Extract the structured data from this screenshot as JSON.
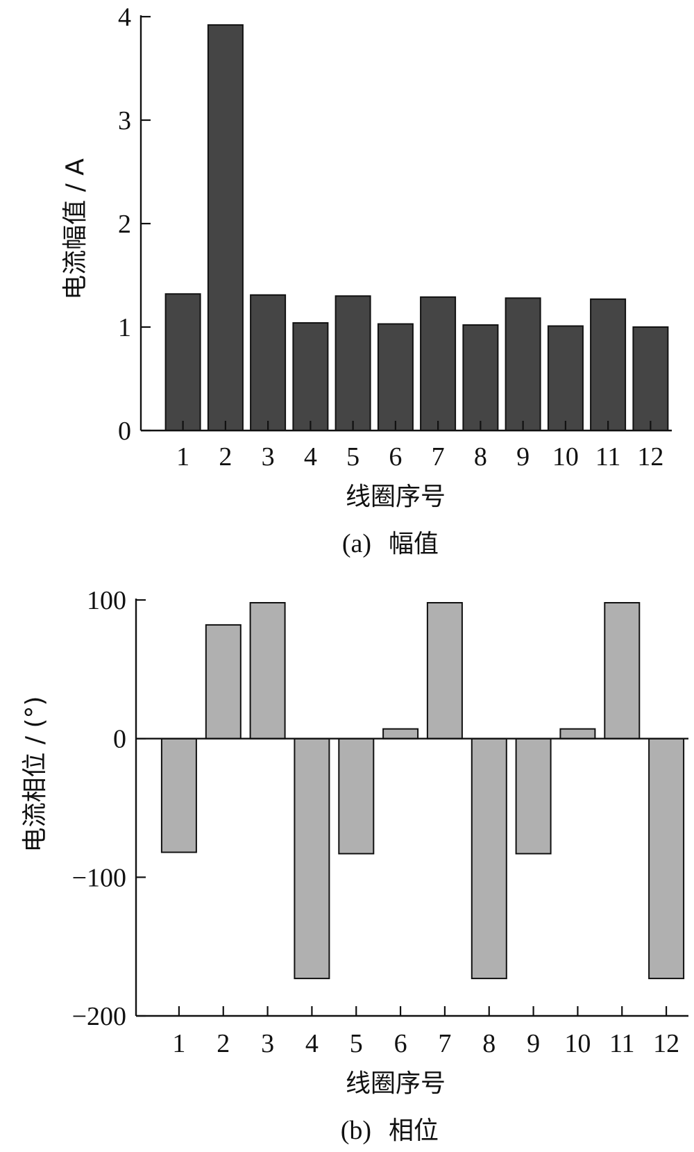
{
  "chart_data": [
    {
      "type": "bar",
      "panel_label": "(a)",
      "caption": "幅值",
      "categories": [
        "1",
        "2",
        "3",
        "4",
        "5",
        "6",
        "7",
        "8",
        "9",
        "10",
        "11",
        "12"
      ],
      "values": [
        1.32,
        3.92,
        1.31,
        1.04,
        1.3,
        1.03,
        1.29,
        1.02,
        1.28,
        1.01,
        1.27,
        1.0
      ],
      "xlabel": "线圈序号",
      "ylabel": "电流幅值 / A",
      "ylim": [
        0,
        4
      ],
      "yticks": [
        0,
        1,
        2,
        3,
        4
      ],
      "bar_color": "#454545",
      "grid": false
    },
    {
      "type": "bar",
      "panel_label": "(b)",
      "caption": "相位",
      "categories": [
        "1",
        "2",
        "3",
        "4",
        "5",
        "6",
        "7",
        "8",
        "9",
        "10",
        "11",
        "12"
      ],
      "values": [
        -82,
        82,
        98,
        -173,
        -83,
        7,
        98,
        -173,
        -83,
        7,
        98,
        -173
      ],
      "xlabel": "线圈序号",
      "ylabel": "电流相位 / (°)",
      "ylim": [
        -200,
        100
      ],
      "yticks": [
        -200,
        -100,
        0,
        100
      ],
      "ytick_labels": [
        "−200",
        "−100",
        "0",
        "100"
      ],
      "bar_color": "#b0b0b0",
      "grid": false
    }
  ]
}
